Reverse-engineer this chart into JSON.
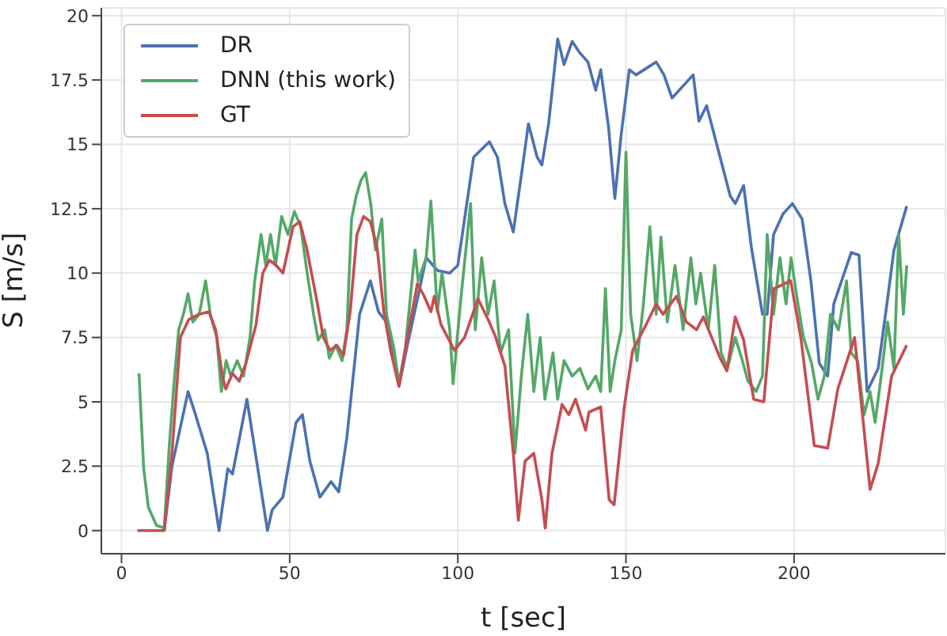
{
  "chart_data": {
    "type": "line",
    "xlabel": "t [sec]",
    "ylabel": "S [m/s]",
    "xlim": [
      -6,
      245
    ],
    "ylim": [
      -0.9,
      20.3
    ],
    "xticks": [
      0,
      50,
      100,
      150,
      200
    ],
    "yticks": [
      0,
      2.5,
      5,
      7.5,
      10,
      12.5,
      15,
      17.5,
      20
    ],
    "grid": true,
    "legend": "top left",
    "marker": "none",
    "line_style": "solid",
    "series": [
      {
        "name": "DR",
        "color": "#4c72b0",
        "x": [
          12.7,
          15,
          19.8,
          22,
          25.5,
          29,
          31.6,
          33,
          37.3,
          43.4,
          44.8,
          48,
          51.9,
          53.8,
          56,
          59,
          62.3,
          64.6,
          67,
          70.8,
          74,
          76.4,
          78.8,
          82.5,
          85,
          88,
          90.6,
          94,
          97.6,
          100,
          102,
          104.7,
          107,
          109.4,
          111.8,
          114,
          116.5,
          119,
          121,
          123.6,
          125,
          127,
          129.7,
          131.6,
          134,
          136,
          138.7,
          141,
          142.5,
          144.8,
          146.7,
          148.6,
          151,
          153,
          156.6,
          159,
          161.3,
          163.7,
          170,
          171.7,
          174,
          178,
          181,
          182.5,
          185,
          187.3,
          190.6,
          192,
          193.9,
          196.7,
          199.5,
          202.4,
          205,
          207.5,
          210,
          211.8,
          217,
          219.3,
          221.7,
          225,
          227.4,
          229.7,
          233.5
        ],
        "values": [
          0,
          2.5,
          5.4,
          4.5,
          3,
          0,
          2.4,
          2.2,
          5.1,
          0,
          0.8,
          1.3,
          4.2,
          4.5,
          2.7,
          1.3,
          1.9,
          1.5,
          3.6,
          8.4,
          9.7,
          8.5,
          8.1,
          5.6,
          7.2,
          9,
          10.6,
          10.1,
          10,
          10.3,
          12.1,
          14.5,
          14.8,
          15.1,
          14.5,
          12.7,
          11.6,
          13.9,
          15.8,
          14.5,
          14.2,
          15.8,
          19.1,
          18.1,
          19,
          18.6,
          18.2,
          17.1,
          17.9,
          15.7,
          12.9,
          15.4,
          17.9,
          17.7,
          18,
          18.2,
          17.7,
          16.8,
          17.7,
          15.9,
          16.5,
          14.5,
          13,
          12.7,
          13.4,
          11,
          8.4,
          8.4,
          11.5,
          12.3,
          12.7,
          12.1,
          9.7,
          6.5,
          6,
          8.8,
          10.8,
          10.7,
          5.4,
          6.3,
          8.6,
          10.9,
          12.6
        ]
      },
      {
        "name": "DNN (this work)",
        "color": "#55a868",
        "x": [
          5.2,
          6.6,
          8,
          10.4,
          12.7,
          14.2,
          15.6,
          17,
          18.4,
          19.8,
          21.2,
          23.1,
          25,
          26.4,
          28.3,
          29.7,
          31.1,
          32.5,
          34.4,
          36.3,
          38.2,
          39.6,
          41.5,
          42.9,
          44.3,
          45.8,
          47.6,
          49.5,
          51.4,
          53.3,
          55.2,
          57.1,
          58.5,
          60.4,
          61.8,
          63.7,
          65.6,
          67,
          68.4,
          69.8,
          71.2,
          72.6,
          74.1,
          75.5,
          77.4,
          78.8,
          81.1,
          82.5,
          84.4,
          87.3,
          88.2,
          90.6,
          92,
          93.9,
          95.3,
          97.6,
          98.6,
          100.9,
          103.8,
          105.2,
          107.1,
          109,
          110.8,
          112.7,
          115.1,
          117,
          118.9,
          120.8,
          122.6,
          124.5,
          125.9,
          128.3,
          129.7,
          131.6,
          134,
          136.3,
          138.7,
          141,
          142.5,
          143.9,
          145.3,
          146.7,
          148.6,
          150,
          151.4,
          153.3,
          155.2,
          157.1,
          159,
          160.4,
          162.3,
          164.6,
          167,
          169.3,
          170.8,
          172.2,
          174.5,
          176.4,
          178.3,
          180.2,
          182.5,
          184.4,
          186.3,
          188.7,
          190.6,
          192,
          193.9,
          195.8,
          197.6,
          199.1,
          200.9,
          202.8,
          205.2,
          207.1,
          209,
          210.8,
          213.2,
          215.6,
          217,
          218.9,
          220.8,
          222.6,
          224.1,
          225.9,
          227.8,
          229.7,
          231.1,
          232.5,
          233.5
        ],
        "values": [
          6.1,
          2.4,
          0.9,
          0.2,
          0.1,
          3.3,
          5.7,
          7.8,
          8.4,
          9.2,
          8.1,
          8.4,
          9.7,
          8.4,
          7.5,
          5.4,
          6.6,
          6,
          6.6,
          6,
          7.5,
          9.7,
          11.5,
          10.3,
          11.5,
          10.3,
          12.2,
          11.5,
          12.4,
          11.8,
          10,
          8.4,
          7.4,
          7.8,
          6.7,
          7.2,
          6.6,
          7.8,
          12.1,
          13,
          13.6,
          13.9,
          12.7,
          10.9,
          12.1,
          8.4,
          7,
          5.7,
          7.1,
          10.9,
          9.7,
          10.6,
          12.8,
          8.5,
          10,
          7.8,
          5.7,
          9,
          12.7,
          7.8,
          10.6,
          8.4,
          9.7,
          6.9,
          7.8,
          3,
          6,
          8.4,
          5.4,
          7.5,
          5.1,
          6.9,
          5.1,
          6.6,
          6,
          6.3,
          5.5,
          6,
          5.4,
          9.4,
          5.4,
          6.6,
          7.8,
          14.7,
          8.4,
          6.6,
          8.8,
          11.8,
          8.4,
          11.4,
          8.1,
          10.3,
          7.8,
          10.6,
          8.8,
          10,
          7.8,
          10.3,
          6.9,
          6.3,
          7.5,
          6.7,
          5.8,
          5.4,
          6,
          11.5,
          8.4,
          10.6,
          8.8,
          10.6,
          9,
          7.5,
          6.5,
          5.1,
          6,
          8.4,
          7.8,
          9.7,
          6.9,
          6.6,
          4.5,
          5.4,
          4.2,
          6,
          8.1,
          6.3,
          11.5,
          8.4,
          10.3
        ]
      },
      {
        "name": "GT",
        "color": "#c44e52",
        "x": [
          4.7,
          12.7,
          15,
          17.5,
          20,
          23,
          26,
          28,
          30,
          31,
          33,
          35,
          37,
          40,
          42,
          44,
          46,
          48,
          51,
          53,
          55,
          58,
          60,
          62,
          64,
          66,
          68,
          70,
          72,
          74,
          76,
          78,
          80,
          82.5,
          85,
          88,
          90,
          92,
          93,
          95,
          99,
          102,
          106,
          109,
          111,
          114,
          116.5,
          118,
          120,
          122.6,
          125,
          126,
          128,
          131,
          133,
          135,
          138,
          139,
          142.5,
          145,
          146.5,
          149.5,
          152,
          156,
          159,
          161,
          165,
          168,
          171,
          173,
          178,
          180,
          182.5,
          185,
          188,
          191,
          194,
          199,
          202,
          206,
          210,
          213,
          218,
          222.6,
          225,
          229,
          233.5
        ],
        "values": [
          0,
          0,
          3,
          7.5,
          8.2,
          8.4,
          8.5,
          7.8,
          6,
          5.5,
          6.1,
          5.8,
          6.5,
          8,
          10,
          10.5,
          10.3,
          10,
          11.8,
          12,
          11,
          9,
          7.5,
          7,
          7.2,
          6.8,
          8.5,
          11.5,
          12.2,
          12,
          11,
          8.5,
          7,
          5.6,
          7.5,
          9.6,
          9.1,
          8.5,
          9.1,
          8,
          7,
          7.5,
          9,
          8.2,
          7.6,
          6.4,
          3,
          0.4,
          2.7,
          3,
          1.2,
          0.1,
          3,
          4.9,
          4.5,
          5.1,
          3.9,
          4.6,
          4.8,
          1.2,
          1,
          4.8,
          7,
          8,
          8.8,
          8.4,
          9.1,
          8.1,
          7.8,
          8.3,
          6.7,
          6.2,
          8.3,
          7.4,
          5.1,
          5,
          9.4,
          9.7,
          7.5,
          3.3,
          3.2,
          5.5,
          7.5,
          1.6,
          2.6,
          6,
          7.2
        ]
      }
    ]
  }
}
